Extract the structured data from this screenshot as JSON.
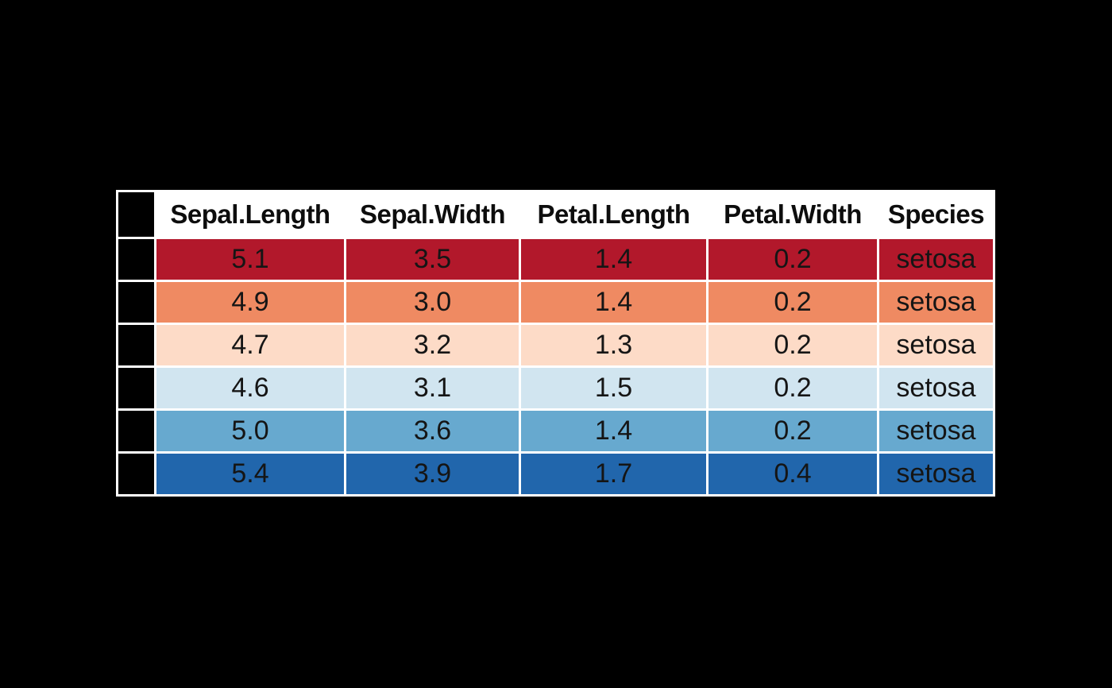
{
  "page": {
    "background": "#000000"
  },
  "table": {
    "columns": [
      "",
      "Sepal.Length",
      "Sepal.Width",
      "Petal.Length",
      "Petal.Width",
      "Species"
    ],
    "header_bg": "#ffffff",
    "row_index_bg": "#000000",
    "border_color": "#ffffff",
    "text_color": "#151515",
    "rows": [
      {
        "color": "#B2182B",
        "values": [
          "5.1",
          "3.5",
          "1.4",
          "0.2",
          "setosa"
        ]
      },
      {
        "color": "#EF8A62",
        "values": [
          "4.9",
          "3.0",
          "1.4",
          "0.2",
          "setosa"
        ]
      },
      {
        "color": "#FDDBC7",
        "values": [
          "4.7",
          "3.2",
          "1.3",
          "0.2",
          "setosa"
        ]
      },
      {
        "color": "#D1E5F0",
        "values": [
          "4.6",
          "3.1",
          "1.5",
          "0.2",
          "setosa"
        ]
      },
      {
        "color": "#67A9CF",
        "values": [
          "5.0",
          "3.6",
          "1.4",
          "0.2",
          "setosa"
        ]
      },
      {
        "color": "#2166AC",
        "values": [
          "5.4",
          "3.9",
          "1.7",
          "0.4",
          "setosa"
        ]
      }
    ]
  },
  "chart_data": {
    "type": "table",
    "title": "",
    "columns": [
      "Sepal.Length",
      "Sepal.Width",
      "Petal.Length",
      "Petal.Width",
      "Species"
    ],
    "rows": [
      [
        5.1,
        3.5,
        1.4,
        0.2,
        "setosa"
      ],
      [
        4.9,
        3.0,
        1.4,
        0.2,
        "setosa"
      ],
      [
        4.7,
        3.2,
        1.3,
        0.2,
        "setosa"
      ],
      [
        4.6,
        3.1,
        1.5,
        0.2,
        "setosa"
      ],
      [
        5.0,
        3.6,
        1.4,
        0.2,
        "setosa"
      ],
      [
        5.4,
        3.9,
        1.7,
        0.4,
        "setosa"
      ]
    ],
    "row_colors": [
      "#B2182B",
      "#EF8A62",
      "#FDDBC7",
      "#D1E5F0",
      "#67A9CF",
      "#2166AC"
    ],
    "palette": "RdBu diverging",
    "layout": "row-striped colored table on black background, white grid borders, bold white header row, black row-index column"
  }
}
